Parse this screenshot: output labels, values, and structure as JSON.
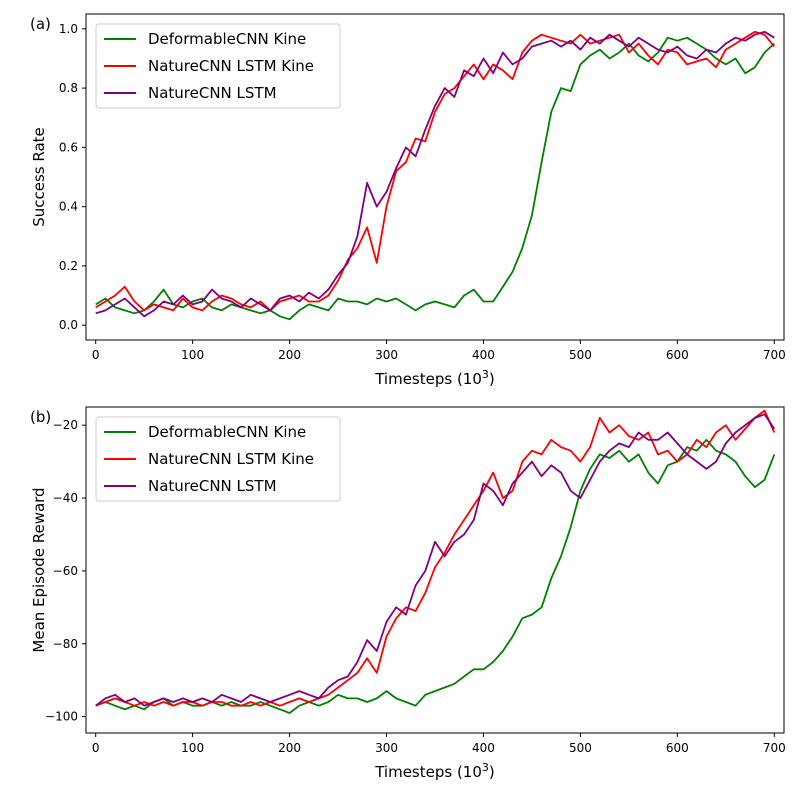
{
  "chart_data": [
    {
      "type": "line",
      "panel_label": "(a)",
      "xlabel": "Timesteps (10",
      "xlabel_sup": "3",
      "xlabel_close": ")",
      "ylabel": "Success Rate",
      "xlim": [
        -10,
        710
      ],
      "ylim": [
        -0.05,
        1.05
      ],
      "xticks": [
        0,
        100,
        200,
        300,
        400,
        500,
        600,
        700
      ],
      "yticks": [
        0.0,
        0.2,
        0.4,
        0.6,
        0.8,
        1.0
      ],
      "ytick_labels": [
        "0.0",
        "0.2",
        "0.4",
        "0.6",
        "0.8",
        "1.0"
      ],
      "legend_position": "top-left",
      "grid": false,
      "series": [
        {
          "name": "DeformableCNN Kine",
          "color": "#008000",
          "x": [
            0,
            10,
            20,
            30,
            40,
            50,
            60,
            70,
            80,
            90,
            100,
            110,
            120,
            130,
            140,
            150,
            160,
            170,
            180,
            190,
            200,
            210,
            220,
            230,
            240,
            250,
            260,
            270,
            280,
            290,
            300,
            310,
            320,
            330,
            340,
            350,
            360,
            370,
            380,
            390,
            400,
            410,
            420,
            430,
            440,
            450,
            460,
            470,
            480,
            490,
            500,
            510,
            520,
            530,
            540,
            550,
            560,
            570,
            580,
            590,
            600,
            610,
            620,
            630,
            640,
            650,
            660,
            670,
            680,
            690,
            700
          ],
          "values": [
            0.07,
            0.09,
            0.06,
            0.05,
            0.04,
            0.05,
            0.08,
            0.12,
            0.07,
            0.06,
            0.08,
            0.09,
            0.06,
            0.05,
            0.07,
            0.06,
            0.05,
            0.04,
            0.05,
            0.03,
            0.02,
            0.05,
            0.07,
            0.06,
            0.05,
            0.09,
            0.08,
            0.08,
            0.07,
            0.09,
            0.08,
            0.09,
            0.07,
            0.05,
            0.07,
            0.08,
            0.07,
            0.06,
            0.1,
            0.12,
            0.08,
            0.08,
            0.13,
            0.18,
            0.26,
            0.37,
            0.55,
            0.72,
            0.8,
            0.79,
            0.88,
            0.91,
            0.93,
            0.9,
            0.92,
            0.95,
            0.91,
            0.89,
            0.92,
            0.97,
            0.96,
            0.97,
            0.95,
            0.93,
            0.9,
            0.88,
            0.9,
            0.85,
            0.87,
            0.92,
            0.95
          ]
        },
        {
          "name": "NatureCNN LSTM Kine",
          "color": "#ff0000",
          "x": [
            0,
            10,
            20,
            30,
            40,
            50,
            60,
            70,
            80,
            90,
            100,
            110,
            120,
            130,
            140,
            150,
            160,
            170,
            180,
            190,
            200,
            210,
            220,
            230,
            240,
            250,
            260,
            270,
            280,
            290,
            300,
            310,
            320,
            330,
            340,
            350,
            360,
            370,
            380,
            390,
            400,
            410,
            420,
            430,
            440,
            450,
            460,
            470,
            480,
            490,
            500,
            510,
            520,
            530,
            540,
            550,
            560,
            570,
            580,
            590,
            600,
            610,
            620,
            630,
            640,
            650,
            660,
            670,
            680,
            690,
            700
          ],
          "values": [
            0.06,
            0.08,
            0.1,
            0.13,
            0.08,
            0.05,
            0.07,
            0.06,
            0.05,
            0.09,
            0.06,
            0.05,
            0.08,
            0.1,
            0.09,
            0.07,
            0.06,
            0.08,
            0.05,
            0.08,
            0.09,
            0.1,
            0.08,
            0.08,
            0.1,
            0.15,
            0.22,
            0.26,
            0.33,
            0.21,
            0.4,
            0.52,
            0.55,
            0.63,
            0.62,
            0.72,
            0.78,
            0.8,
            0.84,
            0.88,
            0.83,
            0.88,
            0.86,
            0.83,
            0.92,
            0.96,
            0.98,
            0.97,
            0.96,
            0.95,
            0.98,
            0.95,
            0.96,
            0.97,
            0.98,
            0.92,
            0.95,
            0.91,
            0.88,
            0.93,
            0.92,
            0.88,
            0.89,
            0.9,
            0.87,
            0.93,
            0.95,
            0.97,
            0.99,
            0.98,
            0.94
          ]
        },
        {
          "name": "NatureCNN LSTM",
          "color": "#800080",
          "x": [
            0,
            10,
            20,
            30,
            40,
            50,
            60,
            70,
            80,
            90,
            100,
            110,
            120,
            130,
            140,
            150,
            160,
            170,
            180,
            190,
            200,
            210,
            220,
            230,
            240,
            250,
            260,
            270,
            280,
            290,
            300,
            310,
            320,
            330,
            340,
            350,
            360,
            370,
            380,
            390,
            400,
            410,
            420,
            430,
            440,
            450,
            460,
            470,
            480,
            490,
            500,
            510,
            520,
            530,
            540,
            550,
            560,
            570,
            580,
            590,
            600,
            610,
            620,
            630,
            640,
            650,
            660,
            670,
            680,
            690,
            700
          ],
          "values": [
            0.04,
            0.05,
            0.07,
            0.09,
            0.06,
            0.03,
            0.05,
            0.08,
            0.07,
            0.1,
            0.07,
            0.08,
            0.12,
            0.09,
            0.08,
            0.06,
            0.09,
            0.07,
            0.05,
            0.09,
            0.1,
            0.08,
            0.11,
            0.09,
            0.12,
            0.17,
            0.21,
            0.3,
            0.48,
            0.4,
            0.45,
            0.53,
            0.6,
            0.57,
            0.66,
            0.74,
            0.8,
            0.77,
            0.86,
            0.84,
            0.9,
            0.85,
            0.92,
            0.88,
            0.9,
            0.94,
            0.95,
            0.96,
            0.94,
            0.96,
            0.93,
            0.97,
            0.95,
            0.98,
            0.96,
            0.94,
            0.97,
            0.95,
            0.93,
            0.92,
            0.94,
            0.91,
            0.9,
            0.93,
            0.92,
            0.95,
            0.97,
            0.96,
            0.98,
            0.99,
            0.97
          ]
        }
      ]
    },
    {
      "type": "line",
      "panel_label": "(b)",
      "xlabel": "Timesteps (10",
      "xlabel_sup": "3",
      "xlabel_close": ")",
      "ylabel": "Mean Episode Reward",
      "xlim": [
        -10,
        710
      ],
      "ylim": [
        -104.5,
        -15
      ],
      "xticks": [
        0,
        100,
        200,
        300,
        400,
        500,
        600,
        700
      ],
      "yticks": [
        -100,
        -80,
        -60,
        -40,
        -20
      ],
      "ytick_labels": [
        "−100",
        "−80",
        "−60",
        "−40",
        "−20"
      ],
      "legend_position": "top-left",
      "grid": false,
      "series": [
        {
          "name": "DeformableCNN Kine",
          "color": "#008000",
          "x": [
            0,
            10,
            20,
            30,
            40,
            50,
            60,
            70,
            80,
            90,
            100,
            110,
            120,
            130,
            140,
            150,
            160,
            170,
            180,
            190,
            200,
            210,
            220,
            230,
            240,
            250,
            260,
            270,
            280,
            290,
            300,
            310,
            320,
            330,
            340,
            350,
            360,
            370,
            380,
            390,
            400,
            410,
            420,
            430,
            440,
            450,
            460,
            470,
            480,
            490,
            500,
            510,
            520,
            530,
            540,
            550,
            560,
            570,
            580,
            590,
            600,
            610,
            620,
            630,
            640,
            650,
            660,
            670,
            680,
            690,
            700
          ],
          "values": [
            -97,
            -96,
            -97,
            -98,
            -97,
            -98,
            -96,
            -95,
            -97,
            -96,
            -97,
            -97,
            -96,
            -97,
            -96,
            -97,
            -97,
            -96,
            -97,
            -98,
            -99,
            -97,
            -96,
            -97,
            -96,
            -94,
            -95,
            -95,
            -96,
            -95,
            -93,
            -95,
            -96,
            -97,
            -94,
            -93,
            -92,
            -91,
            -89,
            -87,
            -87,
            -85,
            -82,
            -78,
            -73,
            -72,
            -70,
            -62,
            -56,
            -48,
            -38,
            -32,
            -28,
            -29,
            -27,
            -30,
            -28,
            -33,
            -36,
            -31,
            -30,
            -26,
            -27,
            -24,
            -27,
            -28,
            -30,
            -34,
            -37,
            -35,
            -28
          ]
        },
        {
          "name": "NatureCNN LSTM Kine",
          "color": "#ff0000",
          "x": [
            0,
            10,
            20,
            30,
            40,
            50,
            60,
            70,
            80,
            90,
            100,
            110,
            120,
            130,
            140,
            150,
            160,
            170,
            180,
            190,
            200,
            210,
            220,
            230,
            240,
            250,
            260,
            270,
            280,
            290,
            300,
            310,
            320,
            330,
            340,
            350,
            360,
            370,
            380,
            390,
            400,
            410,
            420,
            430,
            440,
            450,
            460,
            470,
            480,
            490,
            500,
            510,
            520,
            530,
            540,
            550,
            560,
            570,
            580,
            590,
            600,
            610,
            620,
            630,
            640,
            650,
            660,
            670,
            680,
            690,
            700
          ],
          "values": [
            -97,
            -96,
            -95,
            -96,
            -97,
            -96,
            -97,
            -96,
            -97,
            -96,
            -96,
            -97,
            -96,
            -96,
            -97,
            -97,
            -96,
            -97,
            -96,
            -97,
            -96,
            -95,
            -96,
            -95,
            -94,
            -92,
            -90,
            -88,
            -84,
            -88,
            -78,
            -73,
            -70,
            -71,
            -66,
            -59,
            -55,
            -50,
            -46,
            -42,
            -38,
            -33,
            -40,
            -38,
            -30,
            -27,
            -28,
            -24,
            -26,
            -27,
            -30,
            -26,
            -18,
            -22,
            -20,
            -23,
            -24,
            -22,
            -28,
            -27,
            -30,
            -28,
            -24,
            -26,
            -22,
            -20,
            -24,
            -21,
            -18,
            -16,
            -22
          ]
        },
        {
          "name": "NatureCNN LSTM",
          "color": "#800080",
          "x": [
            0,
            10,
            20,
            30,
            40,
            50,
            60,
            70,
            80,
            90,
            100,
            110,
            120,
            130,
            140,
            150,
            160,
            170,
            180,
            190,
            200,
            210,
            220,
            230,
            240,
            250,
            260,
            270,
            280,
            290,
            300,
            310,
            320,
            330,
            340,
            350,
            360,
            370,
            380,
            390,
            400,
            410,
            420,
            430,
            440,
            450,
            460,
            470,
            480,
            490,
            500,
            510,
            520,
            530,
            540,
            550,
            560,
            570,
            580,
            590,
            600,
            610,
            620,
            630,
            640,
            650,
            660,
            670,
            680,
            690,
            700
          ],
          "values": [
            -97,
            -95,
            -94,
            -96,
            -95,
            -97,
            -96,
            -95,
            -96,
            -95,
            -96,
            -95,
            -96,
            -94,
            -95,
            -96,
            -94,
            -95,
            -96,
            -95,
            -94,
            -93,
            -94,
            -95,
            -92,
            -90,
            -89,
            -85,
            -79,
            -82,
            -74,
            -70,
            -72,
            -64,
            -60,
            -52,
            -56,
            -52,
            -50,
            -46,
            -36,
            -38,
            -42,
            -36,
            -33,
            -30,
            -34,
            -31,
            -33,
            -38,
            -40,
            -35,
            -30,
            -27,
            -25,
            -26,
            -22,
            -24,
            -24,
            -22,
            -25,
            -28,
            -30,
            -32,
            -30,
            -25,
            -22,
            -20,
            -18,
            -17,
            -21
          ]
        }
      ]
    }
  ]
}
